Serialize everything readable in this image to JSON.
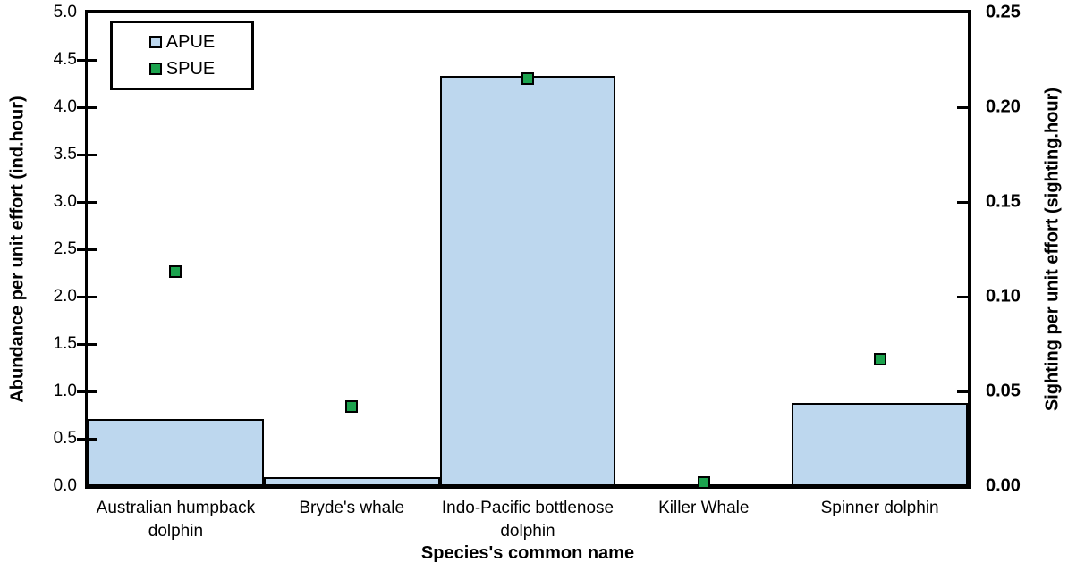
{
  "chart_data": {
    "type": "bar",
    "title": "",
    "categories": [
      "Australian humpback dolphin",
      "Bryde's whale",
      "Indo-Pacific bottlenose dolphin",
      "Killer Whale",
      "Spinner dolphin"
    ],
    "xlabel": "Species's common name",
    "series": [
      {
        "name": "APUE",
        "render": "bar",
        "axis": "left",
        "fill": "#BDD7EE",
        "border": "#000000",
        "values": [
          0.71,
          0.09,
          4.33,
          0.01,
          0.88
        ]
      },
      {
        "name": "SPUE",
        "render": "scatter",
        "axis": "right",
        "fill": "#1CA34E",
        "border": "#000000",
        "values": [
          0.113,
          0.042,
          0.215,
          0.002,
          0.067
        ]
      }
    ],
    "left_axis": {
      "label": "Abundance per unit effort (ind.hour)",
      "min": 0,
      "max": 5,
      "step": 0.5,
      "decimals": 1
    },
    "right_axis": {
      "label": "Sighting per unit effort (sighting.hour)",
      "min": 0,
      "max": 0.25,
      "step": 0.05,
      "decimals": 2
    },
    "legend": {
      "position": "top-left",
      "entries": [
        "APUE",
        "SPUE"
      ]
    },
    "grid": false,
    "plot_background": "#ffffff"
  }
}
